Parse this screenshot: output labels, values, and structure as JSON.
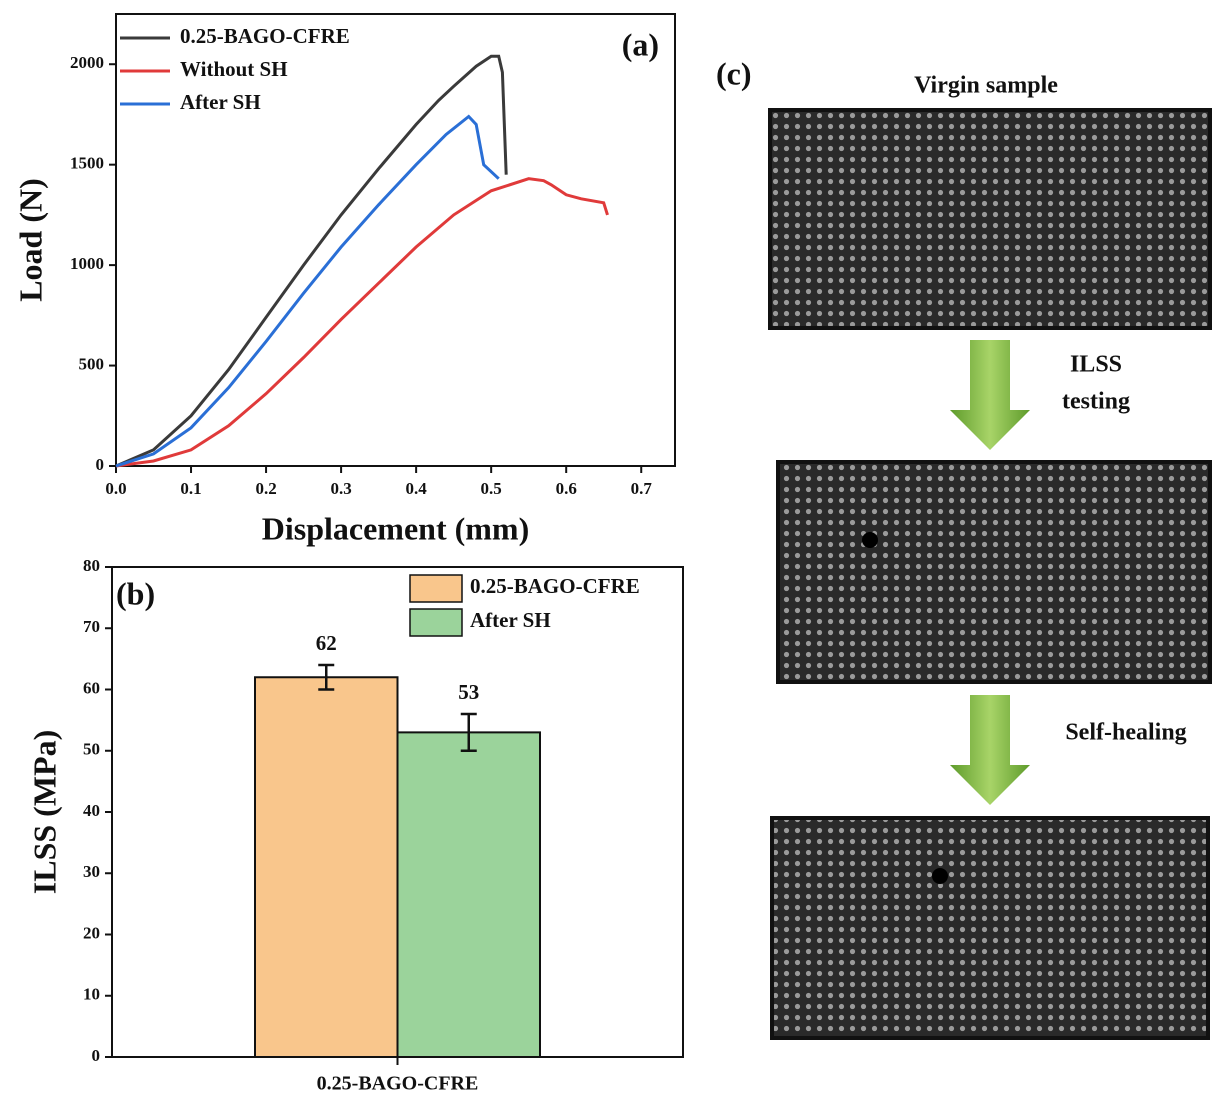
{
  "chart_data": [
    {
      "type": "line",
      "panel_label": "(a)",
      "x_label": "Displacement (mm)",
      "y_label": "Load (N)",
      "xlim": [
        0,
        0.745
      ],
      "ylim": [
        0,
        2250
      ],
      "xticks": [
        {
          "value": 0,
          "label": "0.0"
        },
        0.1,
        0.2,
        0.3,
        0.4,
        0.5,
        0.6,
        0.7
      ],
      "yticks": [
        0,
        500,
        1000,
        1500,
        2000
      ],
      "legend": "upper left",
      "series": [
        {
          "name": "0.25-BAGO-CFRE",
          "color": "#3a3a3a",
          "x": [
            0,
            0.05,
            0.1,
            0.15,
            0.2,
            0.25,
            0.3,
            0.35,
            0.4,
            0.43,
            0.45,
            0.48,
            0.5,
            0.51,
            0.515,
            0.52
          ],
          "values": [
            0,
            80,
            250,
            480,
            740,
            1000,
            1250,
            1480,
            1700,
            1820,
            1890,
            1990,
            2040,
            2040,
            1960,
            1450
          ]
        },
        {
          "name": "Without SH",
          "color": "#e03a3a",
          "x": [
            0,
            0.05,
            0.1,
            0.15,
            0.2,
            0.25,
            0.3,
            0.35,
            0.4,
            0.45,
            0.5,
            0.55,
            0.57,
            0.58,
            0.6,
            0.62,
            0.65,
            0.655
          ],
          "values": [
            0,
            25,
            80,
            200,
            360,
            540,
            730,
            910,
            1090,
            1250,
            1370,
            1430,
            1420,
            1400,
            1350,
            1330,
            1310,
            1250
          ]
        },
        {
          "name": "After SH",
          "color": "#2a6fd6",
          "x": [
            0,
            0.05,
            0.1,
            0.15,
            0.2,
            0.25,
            0.3,
            0.35,
            0.4,
            0.44,
            0.47,
            0.48,
            0.49,
            0.51
          ],
          "values": [
            0,
            60,
            190,
            390,
            620,
            860,
            1090,
            1300,
            1500,
            1650,
            1740,
            1700,
            1500,
            1430
          ]
        }
      ]
    },
    {
      "type": "bar",
      "panel_label": "(b)",
      "y_label": "ILSS (MPa)",
      "categories": [
        "0.25-BAGO-CFRE"
      ],
      "ylim": [
        0,
        80
      ],
      "yticks": [
        0,
        10,
        20,
        30,
        40,
        50,
        60,
        70,
        80
      ],
      "legend": "upper right",
      "series": [
        {
          "name": "0.25-BAGO-CFRE",
          "color": "#f9c68c",
          "values": [
            62
          ],
          "errors": [
            2
          ]
        },
        {
          "name": "After SH",
          "color": "#9bd39b",
          "values": [
            53
          ],
          "errors": [
            3
          ]
        }
      ]
    }
  ],
  "panel_c": {
    "label": "(c)",
    "captions": [
      "Virgin sample"
    ],
    "steps": [
      [
        "ILSS",
        "testing"
      ],
      [
        "Self-healing"
      ]
    ]
  }
}
